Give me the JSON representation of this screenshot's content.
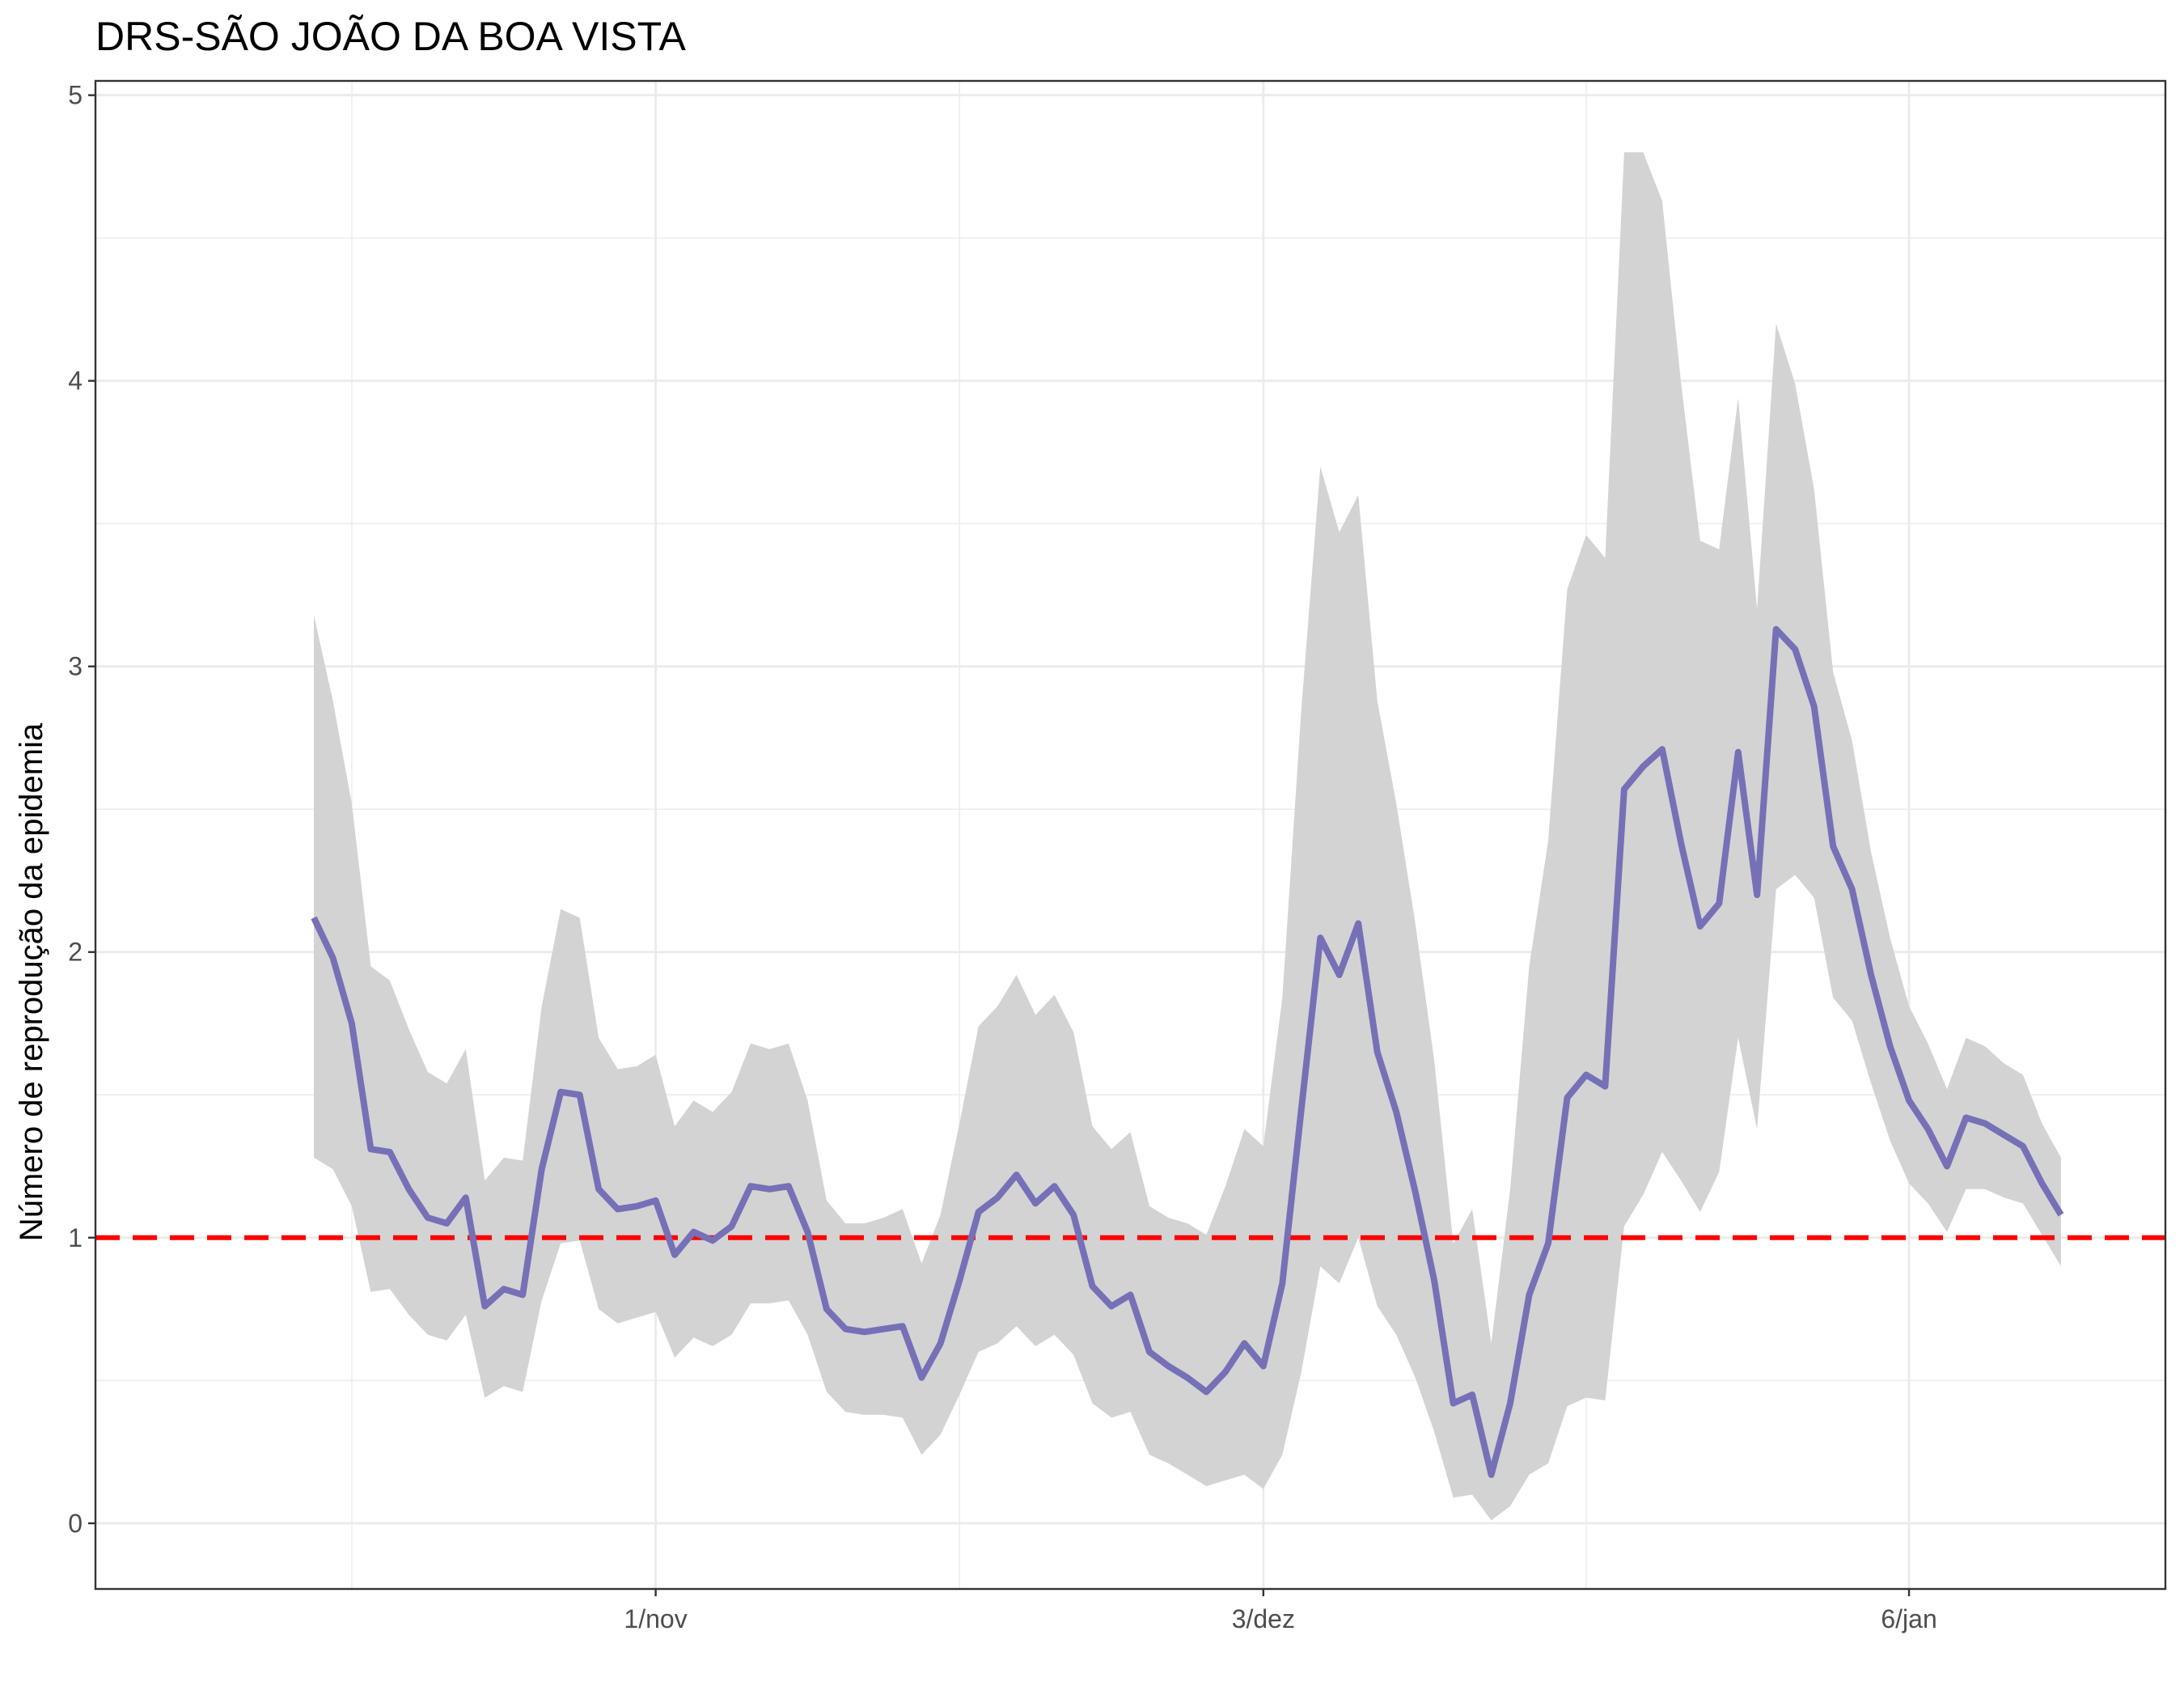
{
  "chart_data": {
    "type": "line",
    "title": "DRS-SÃO JOÃO DA BOA VISTA",
    "xlabel": "",
    "ylabel": "Número de reprodução da epidemia",
    "x_tick_labels": [
      "1/nov",
      "3/dez",
      "6/jan"
    ],
    "x_tick_days": [
      18,
      50,
      84
    ],
    "x_minor_days": [
      2,
      34,
      67,
      100
    ],
    "x_start": "14/out",
    "xlim_days": [
      -11.5,
      97.5
    ],
    "ylim": [
      -0.23,
      5.05
    ],
    "y_ticks": [
      0,
      1,
      2,
      3,
      4,
      5
    ],
    "grid": true,
    "reference_line": {
      "y": 1,
      "style": "dashed",
      "color": "#FF0000"
    },
    "colors": {
      "line": "#7670B7",
      "band": "#D3D3D3",
      "grid": "#EBEBEB",
      "axis": "#333333"
    },
    "series": [
      {
        "values": [
          2.12,
          1.98,
          1.75,
          1.31,
          1.3,
          1.17,
          1.07,
          1.05,
          1.14,
          0.76,
          0.82,
          0.8,
          1.24,
          1.51,
          1.5,
          1.17,
          1.1,
          1.11,
          1.13,
          0.94,
          1.02,
          0.99,
          1.04,
          1.18,
          1.17,
          1.18,
          1.02,
          0.75,
          0.68,
          0.67,
          0.68,
          0.69,
          0.51,
          0.63,
          0.85,
          1.09,
          1.14,
          1.22,
          1.12,
          1.18,
          1.08,
          0.83,
          0.76,
          0.8,
          0.6,
          0.55,
          0.51,
          0.46,
          0.53,
          0.63,
          0.55,
          0.84,
          1.45,
          2.05,
          1.92,
          2.1,
          1.65,
          1.44,
          1.16,
          0.85,
          0.42,
          0.45,
          0.17,
          0.42,
          0.8,
          0.98,
          1.49,
          1.57,
          1.53,
          2.57,
          2.65,
          2.71,
          2.38,
          2.09,
          2.17,
          2.7,
          2.2,
          3.13,
          3.06,
          2.86,
          2.37,
          2.22,
          1.92,
          1.67,
          1.48,
          1.38,
          1.25,
          1.42,
          1.4,
          1.36,
          1.32,
          1.19,
          1.08
        ]
      },
      {
        "name": "band_upper",
        "values": [
          3.18,
          2.88,
          2.52,
          1.95,
          1.9,
          1.73,
          1.58,
          1.54,
          1.66,
          1.2,
          1.28,
          1.27,
          1.81,
          2.15,
          2.12,
          1.7,
          1.59,
          1.6,
          1.64,
          1.39,
          1.48,
          1.44,
          1.51,
          1.68,
          1.66,
          1.68,
          1.48,
          1.13,
          1.05,
          1.05,
          1.07,
          1.1,
          0.91,
          1.08,
          1.4,
          1.74,
          1.81,
          1.92,
          1.78,
          1.85,
          1.72,
          1.39,
          1.31,
          1.37,
          1.11,
          1.07,
          1.05,
          1.01,
          1.18,
          1.38,
          1.32,
          1.84,
          2.85,
          3.7,
          3.47,
          3.6,
          2.88,
          2.52,
          2.1,
          1.62,
          0.98,
          1.1,
          0.63,
          1.17,
          1.95,
          2.39,
          3.27,
          3.46,
          3.38,
          4.8,
          4.8,
          4.63,
          3.99,
          3.44,
          3.41,
          3.94,
          3.2,
          4.2,
          3.99,
          3.62,
          2.98,
          2.74,
          2.35,
          2.05,
          1.81,
          1.68,
          1.52,
          1.7,
          1.67,
          1.61,
          1.57,
          1.4,
          1.28
        ]
      },
      {
        "name": "band_lower",
        "values": [
          1.28,
          1.24,
          1.11,
          0.81,
          0.82,
          0.73,
          0.66,
          0.64,
          0.73,
          0.44,
          0.48,
          0.46,
          0.78,
          0.98,
          0.99,
          0.75,
          0.7,
          0.72,
          0.74,
          0.58,
          0.65,
          0.62,
          0.66,
          0.77,
          0.77,
          0.78,
          0.66,
          0.46,
          0.39,
          0.38,
          0.38,
          0.37,
          0.24,
          0.31,
          0.45,
          0.6,
          0.63,
          0.69,
          0.62,
          0.66,
          0.59,
          0.42,
          0.37,
          0.39,
          0.24,
          0.21,
          0.17,
          0.13,
          0.15,
          0.17,
          0.12,
          0.24,
          0.53,
          0.9,
          0.84,
          1.0,
          0.76,
          0.66,
          0.51,
          0.32,
          0.09,
          0.1,
          0.01,
          0.06,
          0.17,
          0.21,
          0.41,
          0.44,
          0.43,
          1.04,
          1.15,
          1.3,
          1.2,
          1.09,
          1.23,
          1.7,
          1.38,
          2.22,
          2.27,
          2.19,
          1.84,
          1.76,
          1.54,
          1.34,
          1.19,
          1.12,
          1.02,
          1.17,
          1.17,
          1.14,
          1.12,
          1.01,
          0.9
        ]
      }
    ]
  }
}
